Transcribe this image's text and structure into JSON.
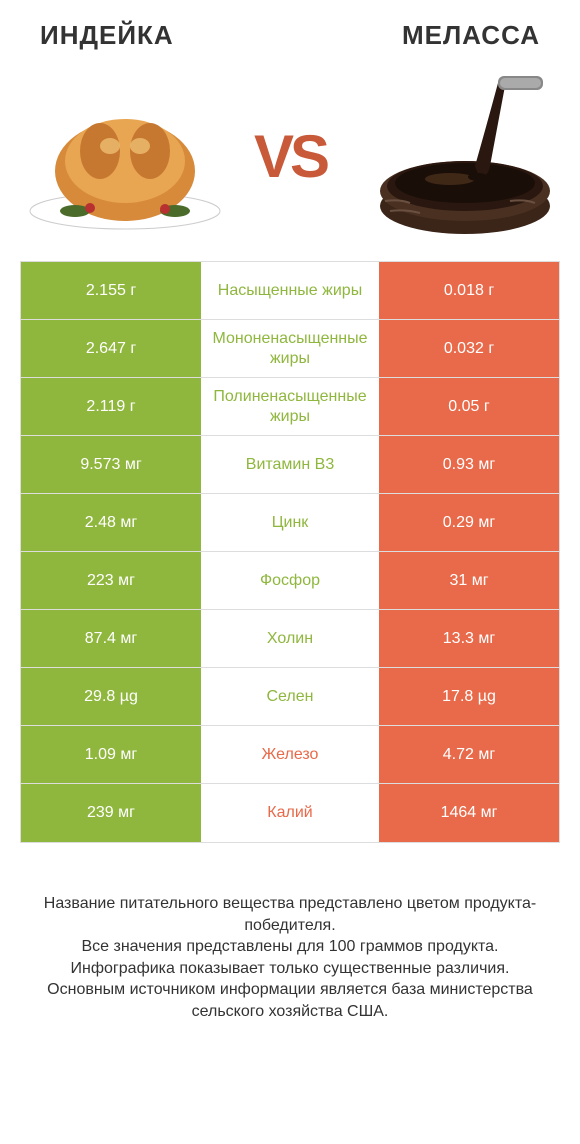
{
  "header": {
    "left_title": "ИНДЕЙКА",
    "right_title": "МЕЛАССА",
    "vs": "VS"
  },
  "colors": {
    "green": "#8fb73e",
    "orange": "#e86a4a",
    "white_cell": "#ffffff",
    "border": "#dddddd",
    "text_white": "#ffffff",
    "text_dark": "#333333"
  },
  "rows": [
    {
      "left": "2.155 г",
      "label": "Насыщенные жиры",
      "right": "0.018 г",
      "winner": "left"
    },
    {
      "left": "2.647 г",
      "label": "Мононенасыщенные жиры",
      "right": "0.032 г",
      "winner": "left"
    },
    {
      "left": "2.119 г",
      "label": "Полиненасыщенные жиры",
      "right": "0.05 г",
      "winner": "left"
    },
    {
      "left": "9.573 мг",
      "label": "Витамин B3",
      "right": "0.93 мг",
      "winner": "left"
    },
    {
      "left": "2.48 мг",
      "label": "Цинк",
      "right": "0.29 мг",
      "winner": "left"
    },
    {
      "left": "223 мг",
      "label": "Фосфор",
      "right": "31 мг",
      "winner": "left"
    },
    {
      "left": "87.4 мг",
      "label": "Холин",
      "right": "13.3 мг",
      "winner": "left"
    },
    {
      "left": "29.8 µg",
      "label": "Селен",
      "right": "17.8 µg",
      "winner": "left"
    },
    {
      "left": "1.09 мг",
      "label": "Железо",
      "right": "4.72 мг",
      "winner": "right"
    },
    {
      "left": "239 мг",
      "label": "Калий",
      "right": "1464 мг",
      "winner": "right"
    }
  ],
  "footer": {
    "text": "Название питательного вещества представлено цветом продукта-победителя.\nВсе значения представлены для 100 граммов продукта.\nИнфографика показывает только существенные различия.\nОсновным источником информации является база министерства сельского хозяйства США."
  }
}
